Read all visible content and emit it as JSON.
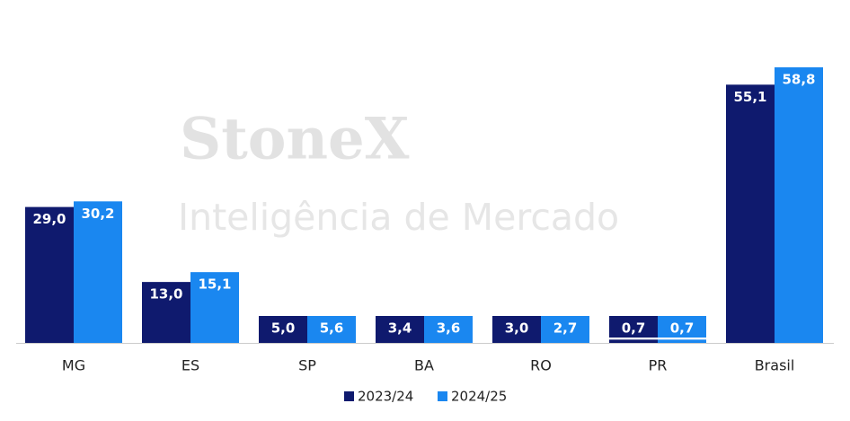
{
  "chart_data": {
    "type": "bar",
    "watermark": {
      "brand": "StoneX",
      "tagline": "Inteligência de Mercado"
    },
    "categories": [
      "MG",
      "ES",
      "SP",
      "BA",
      "RO",
      "PR",
      "Brasil"
    ],
    "series": [
      {
        "name": "2023/24",
        "color": "#0f1a6e",
        "values": [
          29.0,
          13.0,
          5.0,
          3.4,
          3.0,
          0.7,
          55.1
        ],
        "value_labels": [
          "29,0",
          "13,0",
          "5,0",
          "3,4",
          "3,0",
          "0,7",
          "55,1"
        ]
      },
      {
        "name": "2024/25",
        "color": "#1a87f0",
        "values": [
          30.2,
          15.1,
          5.6,
          3.6,
          2.7,
          0.7,
          58.8
        ],
        "value_labels": [
          "30,2",
          "15,1",
          "5,6",
          "3,6",
          "2,7",
          "0,7",
          "58,8"
        ]
      }
    ],
    "legend": "bottom",
    "grid": false
  }
}
